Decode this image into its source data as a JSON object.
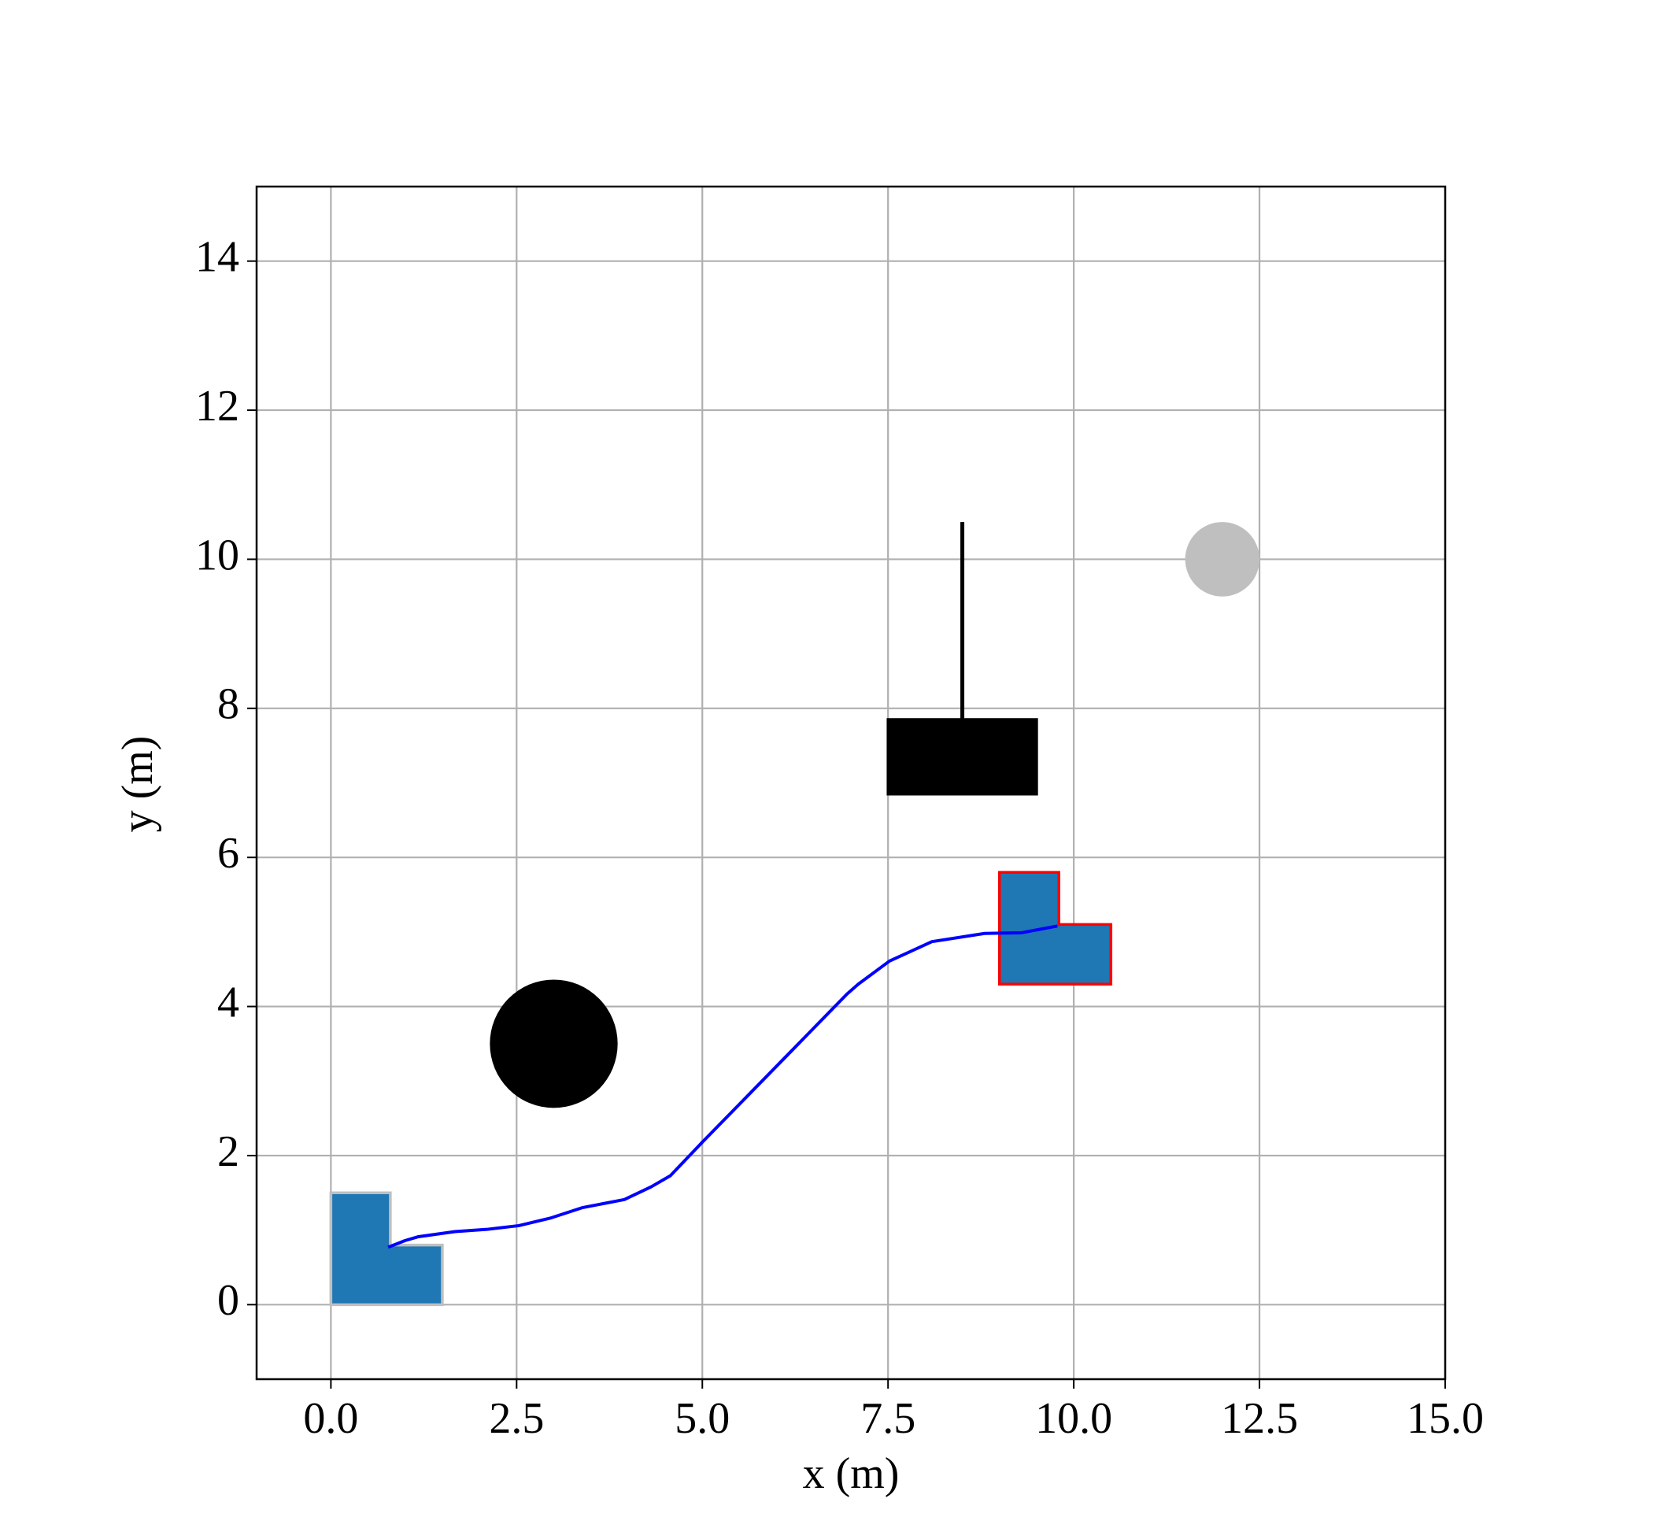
{
  "chart_data": {
    "type": "line",
    "x_label": "x (m)",
    "y_label": "y (m)",
    "xlim": [
      -1,
      15
    ],
    "ylim": [
      -1,
      15
    ],
    "xticks": [
      {
        "value": 0,
        "label": "0.0"
      },
      2.5,
      {
        "value": 5,
        "label": "5.0"
      },
      7.5,
      {
        "value": 10,
        "label": "10.0"
      },
      12.5,
      {
        "value": 15,
        "label": "15.0"
      }
    ],
    "yticks": [
      0,
      2,
      4,
      6,
      8,
      10,
      12,
      14
    ],
    "grid": true,
    "series": [
      {
        "color": "#0000ff",
        "x": [
          0.77,
          1.0,
          1.17,
          1.67,
          2.1,
          2.53,
          2.95,
          3.38,
          3.95,
          4.31,
          4.57,
          5.0,
          5.5,
          6.0,
          6.5,
          6.95,
          7.1,
          7.52,
          8.09,
          8.8,
          9.3,
          9.78
        ],
        "values": [
          0.77,
          0.86,
          0.91,
          0.98,
          1.01,
          1.06,
          1.16,
          1.3,
          1.41,
          1.58,
          1.73,
          2.18,
          2.69,
          3.2,
          3.71,
          4.17,
          4.3,
          4.61,
          4.87,
          4.98,
          4.99,
          5.08
        ]
      }
    ],
    "shapes": [
      {
        "kind": "polygon",
        "fill": "#1f77b4",
        "edge": "#bfbfbf",
        "x": [
          0,
          1.5,
          1.5,
          0.8,
          0.8,
          0
        ],
        "y": [
          0,
          0,
          0.8,
          0.8,
          1.5,
          1.5
        ]
      },
      {
        "kind": "polygon",
        "fill": "#1f77b4",
        "edge": "#ff0000",
        "x": [
          9,
          10.5,
          10.5,
          9.8,
          9.8,
          9
        ],
        "y": [
          4.3,
          4.3,
          5.1,
          5.1,
          5.8,
          5.8
        ]
      },
      {
        "kind": "circle",
        "fill": "#000000",
        "cx": 3,
        "cy": 3.5,
        "r": 0.86
      },
      {
        "kind": "circle",
        "fill": "#bfbfbf",
        "cx": 12,
        "cy": 10,
        "r": 0.5
      },
      {
        "kind": "polygon",
        "fill": "#000000",
        "edge": "#000000",
        "x": [
          7.5,
          9.5,
          9.5,
          7.5
        ],
        "y": [
          6.85,
          6.85,
          7.85,
          7.85
        ]
      },
      {
        "kind": "polyline",
        "edge": "#000000",
        "x": [
          8.5,
          8.5
        ],
        "y": [
          7.85,
          10.5
        ]
      }
    ]
  }
}
